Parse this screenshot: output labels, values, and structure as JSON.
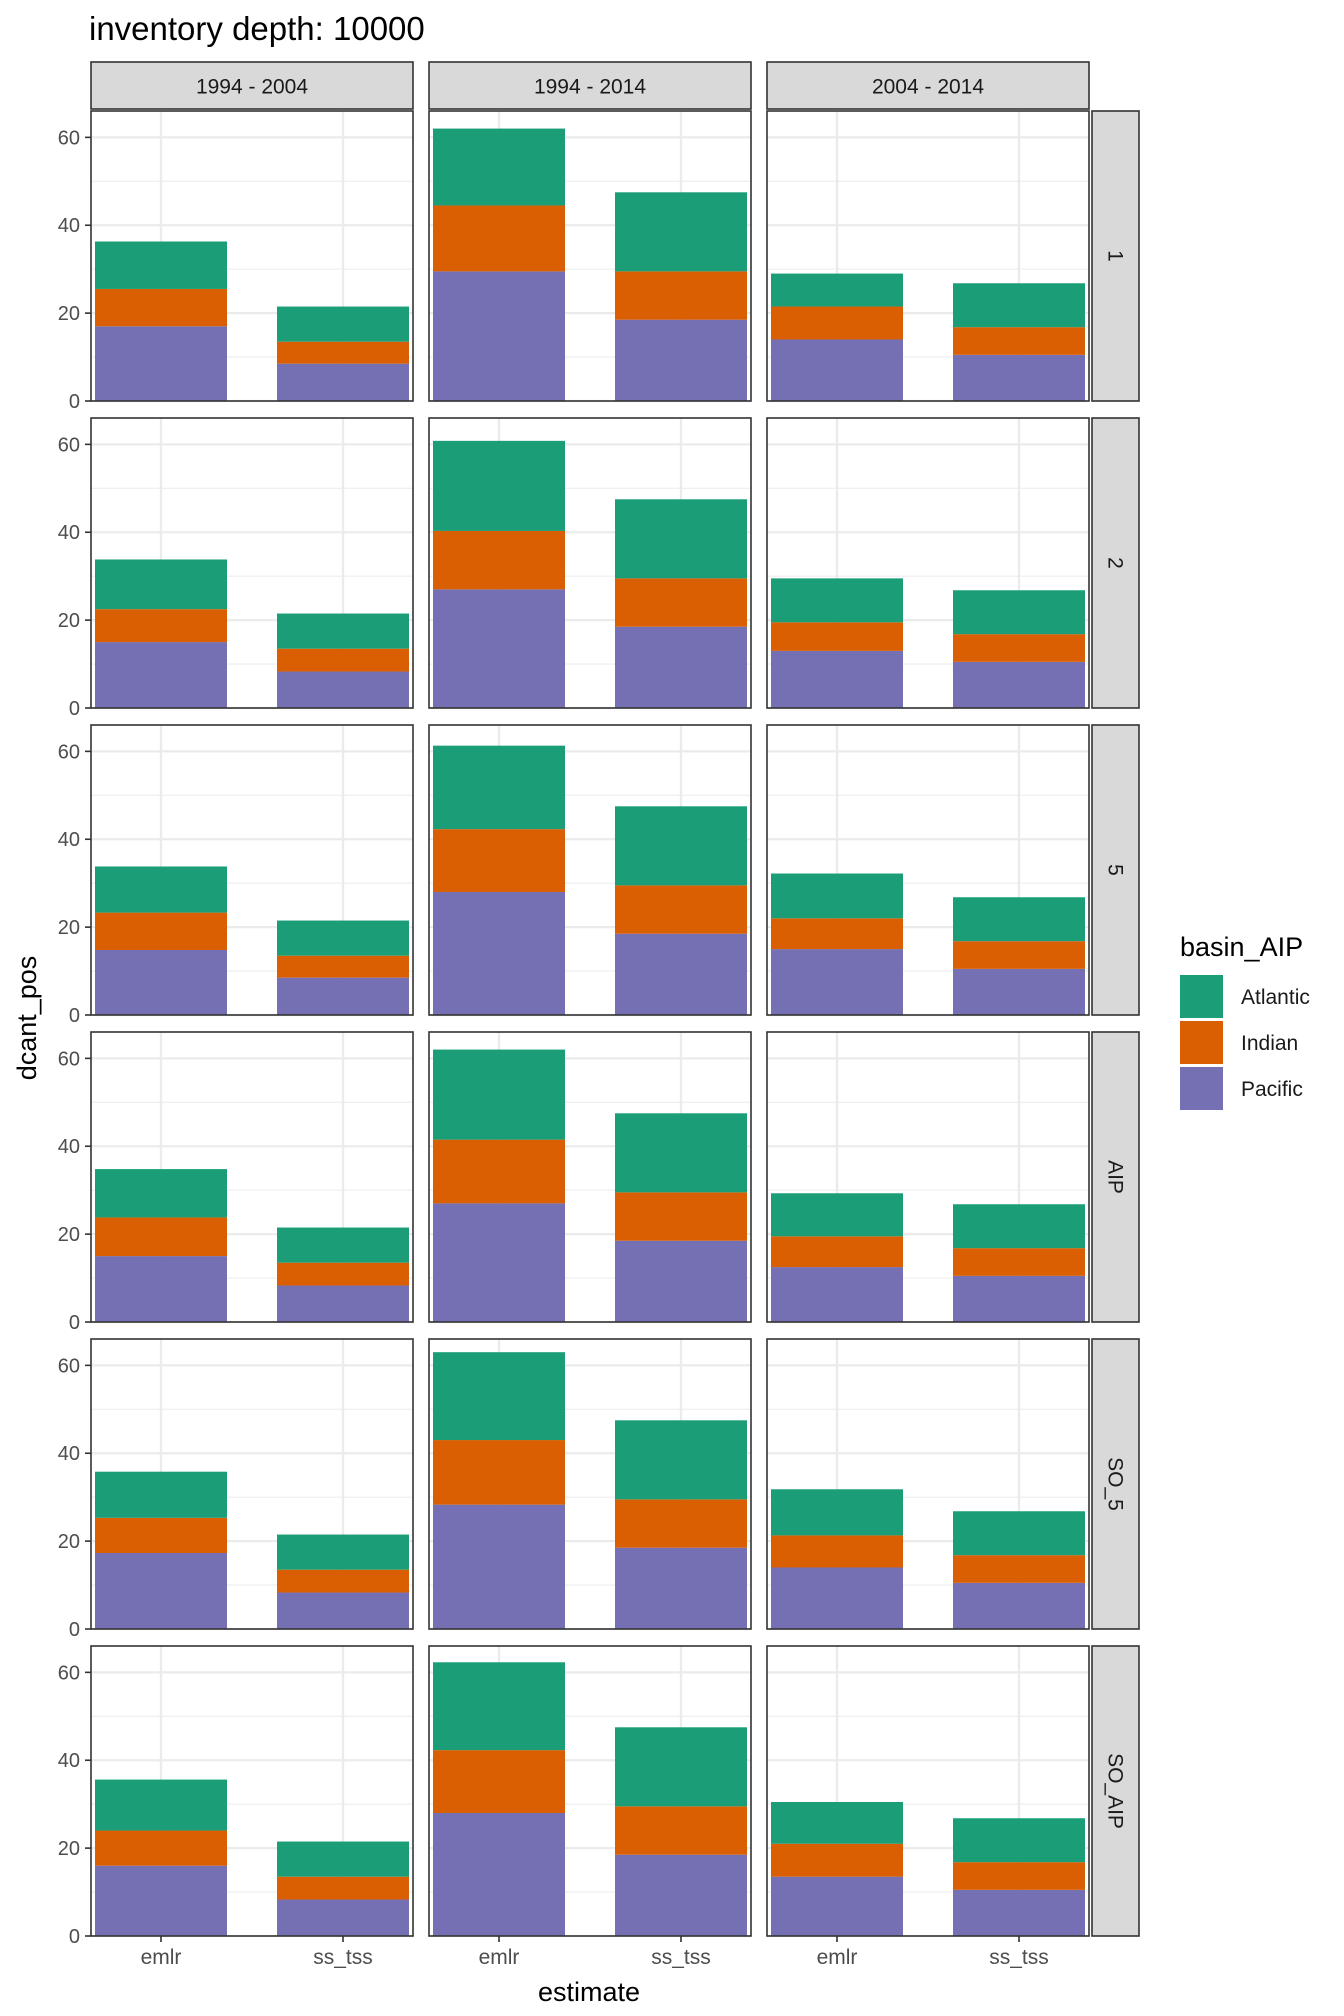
{
  "chart_data": {
    "type": "bar",
    "title": "inventory depth: 10000",
    "xlabel": "estimate",
    "ylabel": "dcant_pos",
    "ylim": [
      0,
      66
    ],
    "yticks": [
      0,
      20,
      40,
      60
    ],
    "grid": true,
    "legend": {
      "title": "basin_AIP",
      "position": "right",
      "entries": [
        {
          "name": "Atlantic",
          "color": "#1b9e77"
        },
        {
          "name": "Indian",
          "color": "#d95f02"
        },
        {
          "name": "Pacific",
          "color": "#7570b3"
        }
      ]
    },
    "categories": [
      "emlr",
      "ss_tss"
    ],
    "col_facets": [
      "1994 - 2004",
      "1994 - 2014",
      "2004 - 2014"
    ],
    "row_facets": [
      "1",
      "2",
      "5",
      "AIP",
      "SO_5",
      "SO_AIP"
    ],
    "stack_order": [
      "Pacific",
      "Indian",
      "Atlantic"
    ],
    "panels": [
      {
        "row": "1",
        "col": "1994 - 2004",
        "bars": {
          "emlr": {
            "Pacific": 17,
            "Indian": 8.5,
            "Atlantic": 10.8
          },
          "ss_tss": {
            "Pacific": 8.5,
            "Indian": 5,
            "Atlantic": 8
          }
        }
      },
      {
        "row": "1",
        "col": "1994 - 2014",
        "bars": {
          "emlr": {
            "Pacific": 29.5,
            "Indian": 15,
            "Atlantic": 17.5
          },
          "ss_tss": {
            "Pacific": 18.5,
            "Indian": 11,
            "Atlantic": 18
          }
        }
      },
      {
        "row": "1",
        "col": "2004 - 2014",
        "bars": {
          "emlr": {
            "Pacific": 14,
            "Indian": 7.5,
            "Atlantic": 7.5
          },
          "ss_tss": {
            "Pacific": 10.5,
            "Indian": 6.3,
            "Atlantic": 10
          }
        }
      },
      {
        "row": "2",
        "col": "1994 - 2004",
        "bars": {
          "emlr": {
            "Pacific": 15,
            "Indian": 7.5,
            "Atlantic": 11.3
          },
          "ss_tss": {
            "Pacific": 8.3,
            "Indian": 5.2,
            "Atlantic": 8
          }
        }
      },
      {
        "row": "2",
        "col": "1994 - 2014",
        "bars": {
          "emlr": {
            "Pacific": 27,
            "Indian": 13.3,
            "Atlantic": 20.5
          },
          "ss_tss": {
            "Pacific": 18.5,
            "Indian": 11,
            "Atlantic": 18
          }
        }
      },
      {
        "row": "2",
        "col": "2004 - 2014",
        "bars": {
          "emlr": {
            "Pacific": 13,
            "Indian": 6.5,
            "Atlantic": 10
          },
          "ss_tss": {
            "Pacific": 10.5,
            "Indian": 6.3,
            "Atlantic": 10
          }
        }
      },
      {
        "row": "5",
        "col": "1994 - 2004",
        "bars": {
          "emlr": {
            "Pacific": 14.8,
            "Indian": 8.5,
            "Atlantic": 10.5
          },
          "ss_tss": {
            "Pacific": 8.5,
            "Indian": 5,
            "Atlantic": 8
          }
        }
      },
      {
        "row": "5",
        "col": "1994 - 2014",
        "bars": {
          "emlr": {
            "Pacific": 28,
            "Indian": 14.3,
            "Atlantic": 19
          },
          "ss_tss": {
            "Pacific": 18.5,
            "Indian": 11,
            "Atlantic": 18
          }
        }
      },
      {
        "row": "5",
        "col": "2004 - 2014",
        "bars": {
          "emlr": {
            "Pacific": 15,
            "Indian": 7,
            "Atlantic": 10.2
          },
          "ss_tss": {
            "Pacific": 10.5,
            "Indian": 6.3,
            "Atlantic": 10
          }
        }
      },
      {
        "row": "AIP",
        "col": "1994 - 2004",
        "bars": {
          "emlr": {
            "Pacific": 15,
            "Indian": 8.8,
            "Atlantic": 11
          },
          "ss_tss": {
            "Pacific": 8.3,
            "Indian": 5.2,
            "Atlantic": 8
          }
        }
      },
      {
        "row": "AIP",
        "col": "1994 - 2014",
        "bars": {
          "emlr": {
            "Pacific": 27,
            "Indian": 14.5,
            "Atlantic": 20.5
          },
          "ss_tss": {
            "Pacific": 18.5,
            "Indian": 11,
            "Atlantic": 18
          }
        }
      },
      {
        "row": "AIP",
        "col": "2004 - 2014",
        "bars": {
          "emlr": {
            "Pacific": 12.5,
            "Indian": 7,
            "Atlantic": 9.8
          },
          "ss_tss": {
            "Pacific": 10.5,
            "Indian": 6.3,
            "Atlantic": 10
          }
        }
      },
      {
        "row": "SO_5",
        "col": "1994 - 2004",
        "bars": {
          "emlr": {
            "Pacific": 17.3,
            "Indian": 8,
            "Atlantic": 10.5
          },
          "ss_tss": {
            "Pacific": 8.3,
            "Indian": 5.2,
            "Atlantic": 8
          }
        }
      },
      {
        "row": "SO_5",
        "col": "1994 - 2014",
        "bars": {
          "emlr": {
            "Pacific": 28.3,
            "Indian": 14.7,
            "Atlantic": 20
          },
          "ss_tss": {
            "Pacific": 18.5,
            "Indian": 11,
            "Atlantic": 18
          }
        }
      },
      {
        "row": "SO_5",
        "col": "2004 - 2014",
        "bars": {
          "emlr": {
            "Pacific": 14,
            "Indian": 7.3,
            "Atlantic": 10.5
          },
          "ss_tss": {
            "Pacific": 10.5,
            "Indian": 6.3,
            "Atlantic": 10
          }
        }
      },
      {
        "row": "SO_AIP",
        "col": "1994 - 2004",
        "bars": {
          "emlr": {
            "Pacific": 16,
            "Indian": 8,
            "Atlantic": 11.6
          },
          "ss_tss": {
            "Pacific": 8.3,
            "Indian": 5.2,
            "Atlantic": 8
          }
        }
      },
      {
        "row": "SO_AIP",
        "col": "1994 - 2014",
        "bars": {
          "emlr": {
            "Pacific": 28,
            "Indian": 14.3,
            "Atlantic": 20
          },
          "ss_tss": {
            "Pacific": 18.5,
            "Indian": 11,
            "Atlantic": 18
          }
        }
      },
      {
        "row": "SO_AIP",
        "col": "2004 - 2014",
        "bars": {
          "emlr": {
            "Pacific": 13.5,
            "Indian": 7.5,
            "Atlantic": 9.5
          },
          "ss_tss": {
            "Pacific": 10.5,
            "Indian": 6.3,
            "Atlantic": 10
          }
        }
      }
    ]
  }
}
